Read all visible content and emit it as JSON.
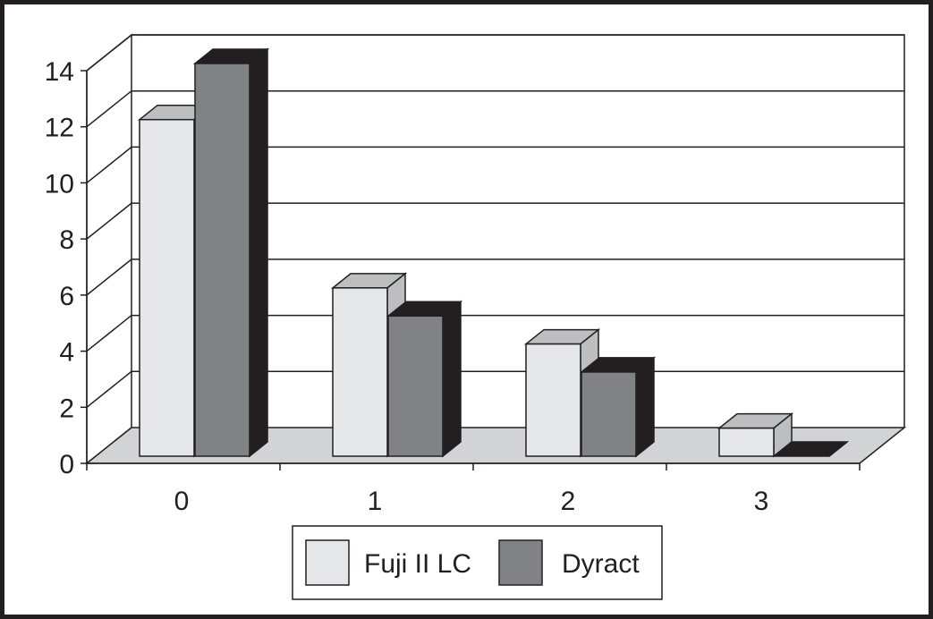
{
  "chart_data": {
    "type": "bar",
    "categories": [
      "0",
      "1",
      "2",
      "3"
    ],
    "series": [
      {
        "name": "Fuji II LC",
        "values": [
          12,
          6,
          4,
          1
        ]
      },
      {
        "name": "Dyract",
        "values": [
          14,
          5,
          3,
          0
        ]
      }
    ],
    "ylim": [
      0,
      14
    ],
    "yticks": [
      "0",
      "2",
      "4",
      "6",
      "8",
      "10",
      "12",
      "14"
    ],
    "title": "",
    "xlabel": "",
    "ylabel": "",
    "grid": true,
    "legend_position": "bottom",
    "style": "3d-clustered-column"
  },
  "colors": {
    "series_front": [
      "#e6e7e8",
      "#808285"
    ],
    "series_top": [
      "#bcbec0",
      "#231f20"
    ],
    "series_side": [
      "#bcbec0",
      "#231f20"
    ],
    "floor": "#d1d3d4",
    "outline": "#231f20",
    "background": "#ffffff"
  }
}
